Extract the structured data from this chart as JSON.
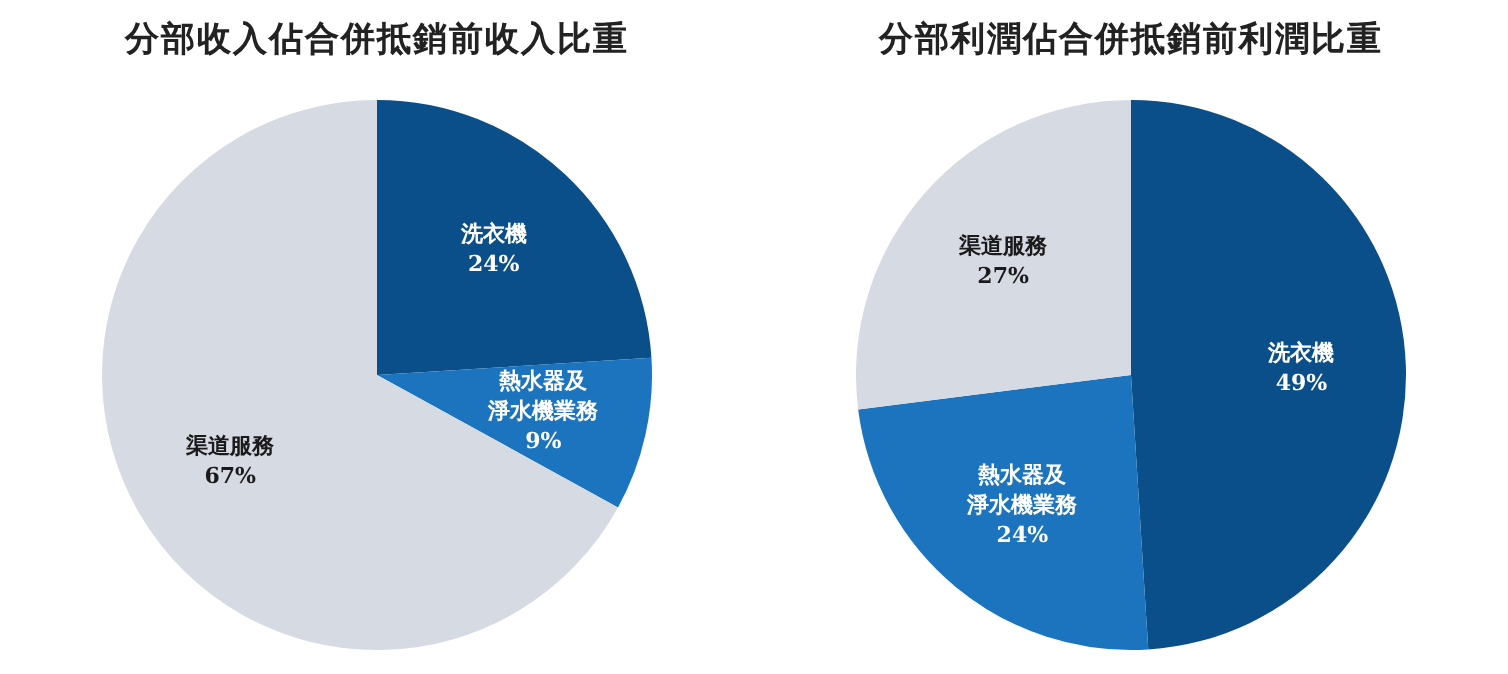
{
  "chart_data": [
    {
      "type": "pie",
      "title": "分部收入佔合併抵銷前收入比重",
      "categories": [
        "洗衣機",
        "熱水器及淨水機業務",
        "渠道服務"
      ],
      "values": [
        24,
        9,
        67
      ],
      "value_labels": [
        "24%",
        "9%",
        "67%"
      ],
      "colors": [
        "#0b4f8a",
        "#1b74bd",
        "#d5dae3"
      ]
    },
    {
      "type": "pie",
      "title": "分部利潤佔合併抵銷前利潤比重",
      "categories": [
        "洗衣機",
        "熱水器及淨水機業務",
        "渠道服務"
      ],
      "values": [
        49,
        24,
        27
      ],
      "value_labels": [
        "49%",
        "24%",
        "27%"
      ],
      "colors": [
        "#0b4f8a",
        "#1b74bd",
        "#d5dae3"
      ]
    }
  ]
}
